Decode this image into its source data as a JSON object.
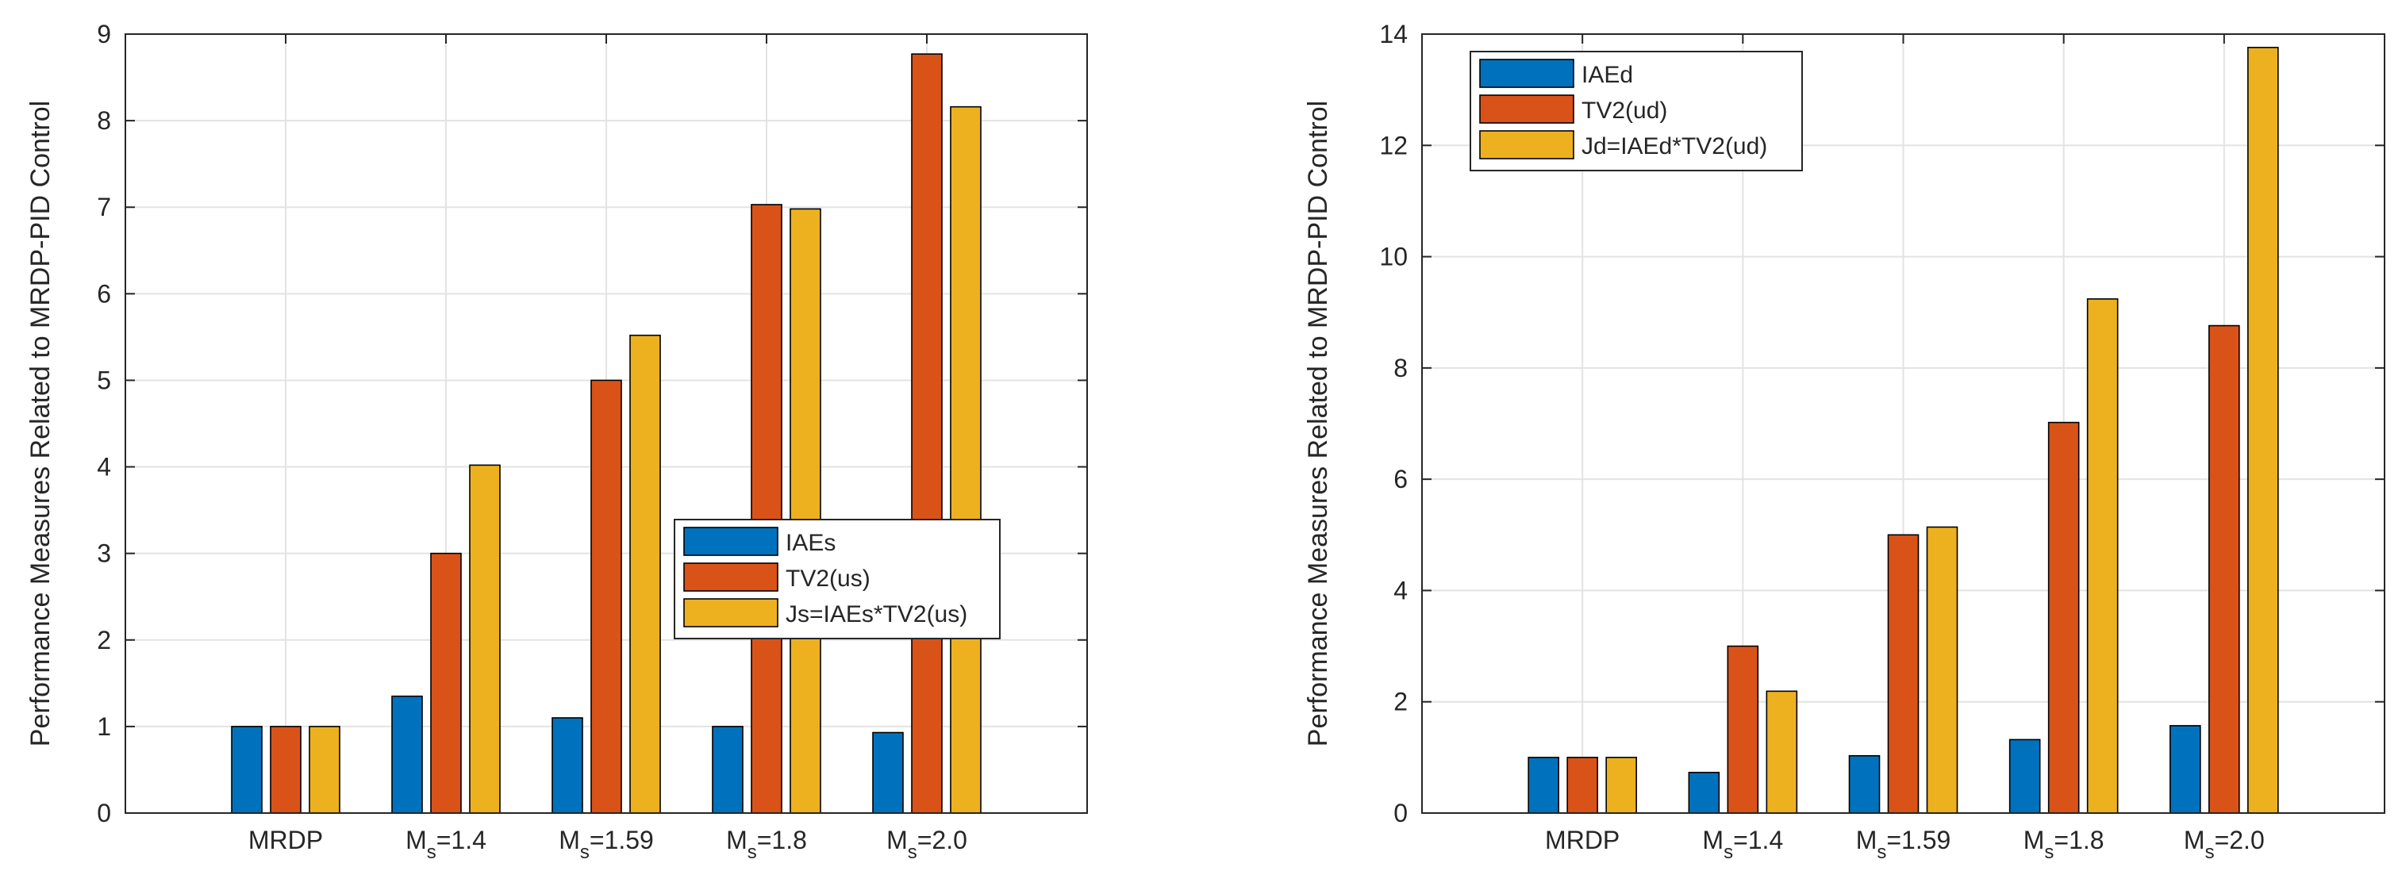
{
  "chart_data": [
    {
      "type": "bar",
      "ylabel": "Performance Measures Related to MRDP-PID Control",
      "xlabel": "",
      "ylim": [
        0,
        9
      ],
      "yticks": [
        "0",
        "1",
        "2",
        "3",
        "4",
        "5",
        "6",
        "7",
        "8",
        "9"
      ],
      "grid": true,
      "legend_position": "right-middle",
      "categories": [
        {
          "label": "MRDP"
        },
        {
          "label": "M",
          "sub": "s",
          "suffix": "=1.4"
        },
        {
          "label": "M",
          "sub": "s",
          "suffix": "=1.59"
        },
        {
          "label": "M",
          "sub": "s",
          "suffix": "=1.8"
        },
        {
          "label": "M",
          "sub": "s",
          "suffix": "=2.0"
        }
      ],
      "series": [
        {
          "name": "IAEs",
          "color": "#0072BD",
          "values": [
            1.0,
            1.35,
            1.1,
            1.0,
            0.93
          ]
        },
        {
          "name": "TV2(us)",
          "color": "#D95319",
          "values": [
            1.0,
            3.0,
            5.0,
            7.03,
            8.77
          ]
        },
        {
          "name": "Js=IAEs*TV2(us)",
          "color": "#EDB120",
          "values": [
            1.0,
            4.02,
            5.52,
            6.98,
            8.16
          ]
        }
      ]
    },
    {
      "type": "bar",
      "ylabel": "Performance Measures Related to MRDP-PID Control",
      "xlabel": "",
      "ylim": [
        0,
        14
      ],
      "yticks": [
        "0",
        "2",
        "4",
        "6",
        "8",
        "10",
        "12",
        "14"
      ],
      "grid": true,
      "legend_position": "top-left",
      "categories": [
        {
          "label": "MRDP"
        },
        {
          "label": "M",
          "sub": "s",
          "suffix": "=1.4"
        },
        {
          "label": "M",
          "sub": "s",
          "suffix": "=1.59"
        },
        {
          "label": "M",
          "sub": "s",
          "suffix": "=1.8"
        },
        {
          "label": "M",
          "sub": "s",
          "suffix": "=2.0"
        }
      ],
      "series": [
        {
          "name": "IAEd",
          "color": "#0072BD",
          "values": [
            1.0,
            0.73,
            1.03,
            1.32,
            1.57
          ]
        },
        {
          "name": "TV2(ud)",
          "color": "#D95319",
          "values": [
            1.0,
            3.0,
            5.0,
            7.02,
            8.76
          ]
        },
        {
          "name": "Jd=IAEd*TV2(ud)",
          "color": "#EDB120",
          "values": [
            1.0,
            2.19,
            5.14,
            9.24,
            13.76
          ]
        }
      ]
    }
  ]
}
